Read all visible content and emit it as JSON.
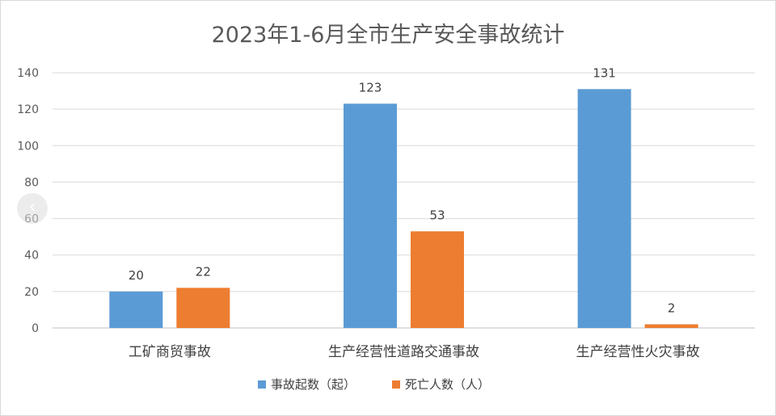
{
  "chart_data": {
    "type": "bar",
    "title": "2023年1-6月全市生产安全事故统计",
    "categories": [
      "工矿商贸事故",
      "生产经营性道路交通事故",
      "生产经营性火灾事故"
    ],
    "series": [
      {
        "name": "事故起数（起）",
        "color": "#5B9BD5",
        "values": [
          20,
          123,
          131
        ]
      },
      {
        "name": "死亡人数（人）",
        "color": "#ED7D31",
        "values": [
          22,
          53,
          2
        ]
      }
    ],
    "ylim": [
      0,
      140
    ],
    "yticks": [
      0,
      20,
      40,
      60,
      80,
      100,
      120,
      140
    ],
    "grid": true,
    "legend_position": "bottom",
    "data_labels": true
  },
  "ui": {
    "prev_icon": "chevron-left-icon",
    "prev_glyph": "‹"
  }
}
